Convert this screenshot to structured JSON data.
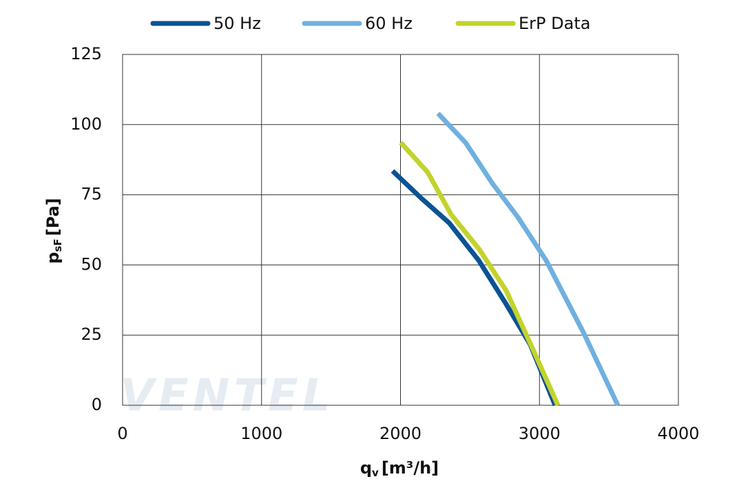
{
  "chart_data": {
    "type": "line",
    "watermark": "VENTEL",
    "xlabel": {
      "main": "q",
      "sub": "v",
      "unit": "[m³/h]"
    },
    "ylabel": {
      "main": "p",
      "sub": "sF",
      "unit": "[Pa]"
    },
    "xlim": [
      0,
      4000
    ],
    "xticks": [
      0,
      1000,
      2000,
      3000,
      4000
    ],
    "ylim": [
      0,
      125
    ],
    "yticks": [
      0,
      25,
      50,
      75,
      100,
      125
    ],
    "grid": true,
    "legend": "top",
    "series": [
      {
        "name": "50 Hz",
        "color": "#0b5394",
        "x": [
          1943,
          2151,
          2350,
          2563,
          2761,
          2934,
          3113
        ],
        "values": [
          83.5,
          73.7,
          65,
          51.6,
          36,
          21.6,
          0
        ]
      },
      {
        "name": "60 Hz",
        "color": "#6fb0e0",
        "x": [
          2270,
          2468,
          2662,
          2845,
          3048,
          3321,
          3564
        ],
        "values": [
          104,
          93.6,
          79,
          67,
          51.6,
          25.5,
          0
        ]
      },
      {
        "name": "ErP Data",
        "color": "#c3d32c",
        "x": [
          2002,
          2196,
          2364,
          2568,
          2761,
          2949,
          3133
        ],
        "values": [
          93.6,
          83,
          68,
          55.5,
          40.8,
          20.4,
          0
        ]
      }
    ]
  }
}
